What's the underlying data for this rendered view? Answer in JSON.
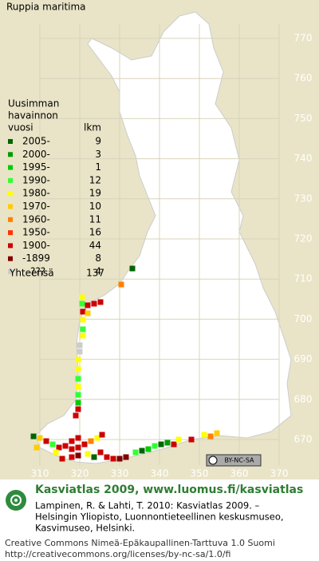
{
  "title": "Ruppia maritima",
  "legend": {
    "header": [
      "Uusimman",
      "havainnon",
      "vuosi"
    ],
    "count_header": "lkm",
    "rows": [
      {
        "label": "2005-",
        "count": "9",
        "color": "#006400"
      },
      {
        "label": "2000-",
        "count": "3",
        "color": "#009a00"
      },
      {
        "label": "1995-",
        "count": "1",
        "color": "#00cc00"
      },
      {
        "label": "1990-",
        "count": "12",
        "color": "#33ff33"
      },
      {
        "label": "1980-",
        "count": "19",
        "color": "#ffff00"
      },
      {
        "label": "1970-",
        "count": "10",
        "color": "#ffcc00"
      },
      {
        "label": "1960-",
        "count": "11",
        "color": "#ff8000"
      },
      {
        "label": "1950-",
        "count": "16",
        "color": "#ff3300"
      },
      {
        "label": "1900-",
        "count": "44",
        "color": "#cc0000"
      },
      {
        "label": "-1899",
        "count": "8",
        "color": "#800000"
      },
      {
        "label": "???",
        "count": "4",
        "color": "#cccccc"
      }
    ],
    "total_label": "Yhteensä",
    "total": "137"
  },
  "grid_y_labels": [
    "770",
    "760",
    "750",
    "740",
    "730",
    "720",
    "710",
    "700",
    "690",
    "680",
    "670"
  ],
  "grid_x_labels": [
    "310",
    "320",
    "330",
    "340",
    "350",
    "360",
    "370"
  ],
  "badge": "BY-NC-SA",
  "footer": {
    "heading": "Kasviatlas 2009, www.luomus.fi/kasviatlas",
    "citation": [
      "Lampinen, R. & Lahti, T. 2010: Kasviatlas 2009. –",
      "Helsingin Yliopisto, Luonnontieteellinen keskusmuseo,",
      "Kasvimuseo, Helsinki."
    ],
    "license": [
      "Creative Commons Nimeä-Epäkaupallinen-Tarttuva 1.0 Suomi",
      "http://creativecommons.org/licenses/by-nc-sa/1.0/fi"
    ]
  }
}
